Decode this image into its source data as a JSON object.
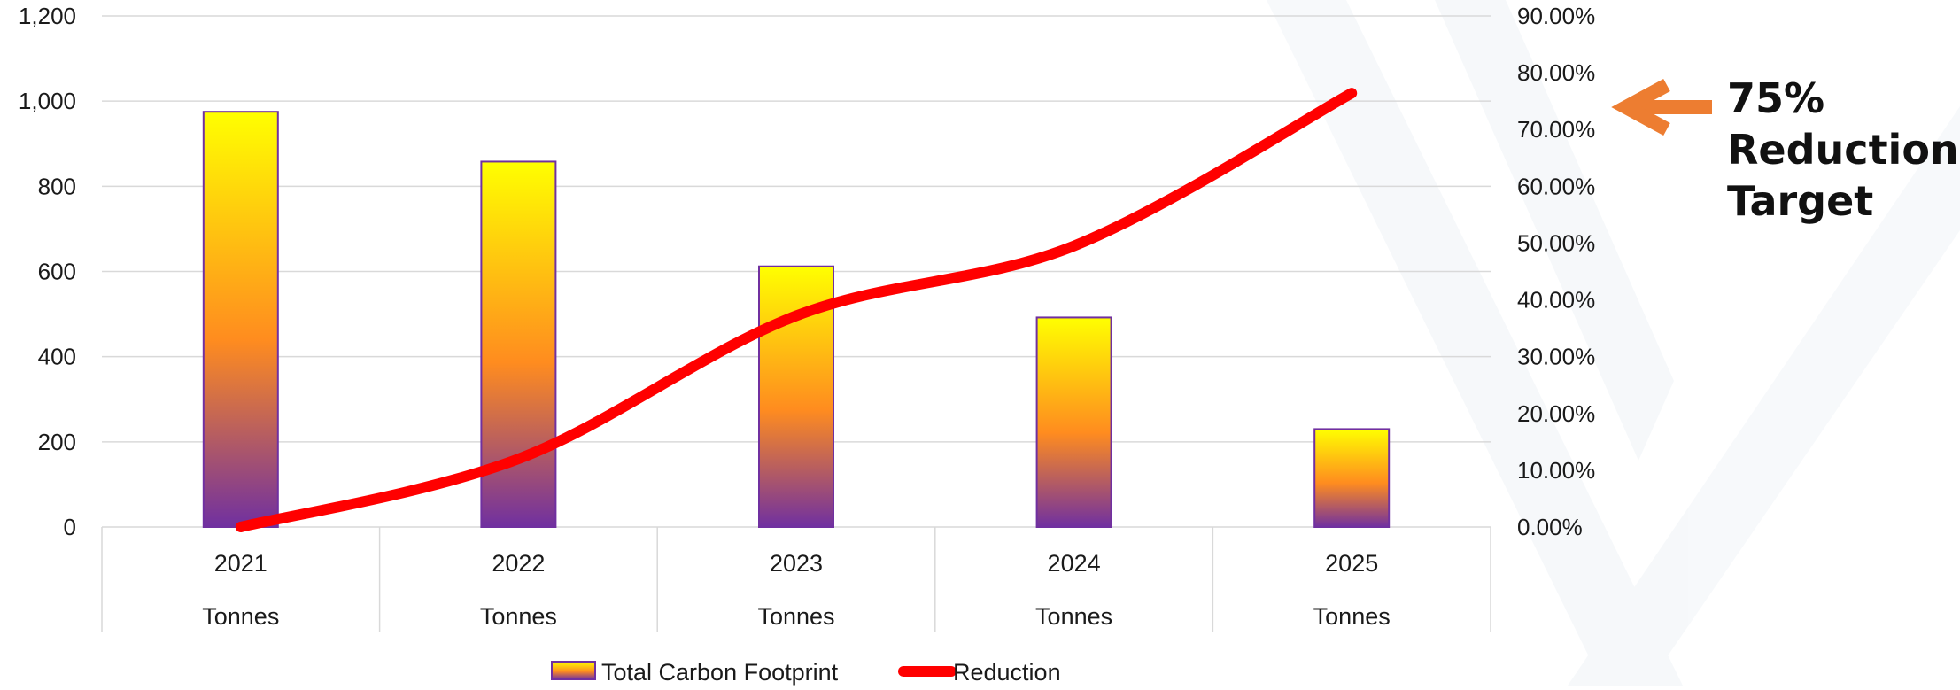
{
  "chart_data": {
    "type": "bar",
    "categories": [
      "2021",
      "2022",
      "2023",
      "2024",
      "2025"
    ],
    "subcategories": [
      "Tonnes",
      "Tonnes",
      "Tonnes",
      "Tonnes",
      "Tonnes"
    ],
    "series": [
      {
        "name": "Total Carbon Footprint",
        "type": "bar",
        "axis": "left",
        "values": [
          975,
          858,
          612,
          492,
          230
        ]
      },
      {
        "name": "Reduction",
        "type": "line",
        "axis": "right",
        "values": [
          0.0,
          12.0,
          37.2,
          49.5,
          76.4
        ]
      }
    ],
    "y_left": {
      "min": 0,
      "max": 1200,
      "ticks": [
        "0",
        "200",
        "400",
        "600",
        "800",
        "1,000",
        "1,200"
      ]
    },
    "y_right": {
      "min": 0,
      "max": 90,
      "ticks": [
        "0.00%",
        "10.00%",
        "20.00%",
        "30.00%",
        "40.00%",
        "50.00%",
        "60.00%",
        "70.00%",
        "80.00%",
        "90.00%"
      ]
    },
    "grid": true,
    "legend_position": "bottom",
    "annotation": {
      "lines": [
        "75%",
        "Reduction",
        "Target"
      ]
    },
    "colors": {
      "bar_top": "#ffff00",
      "bar_mid": "#ff8c1f",
      "bar_bottom": "#7030a0",
      "bar_border": "#7030a0",
      "line": "#ff0000",
      "arrow": "#ed7d31",
      "grid": "#d9d9d9"
    }
  }
}
